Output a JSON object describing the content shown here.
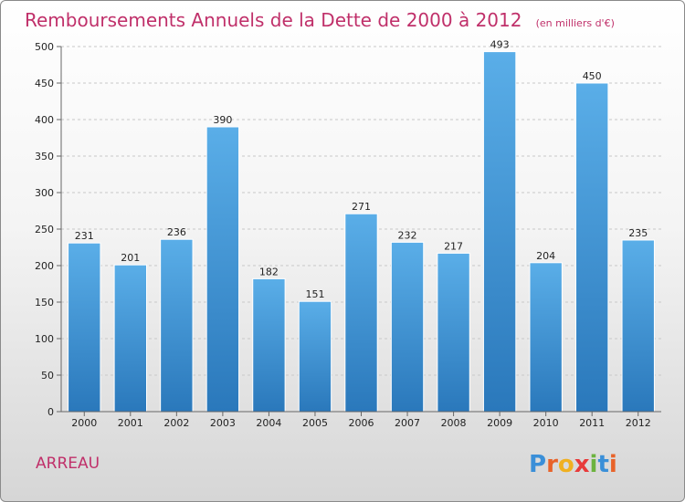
{
  "chart_data": {
    "type": "bar",
    "title": "Remboursements Annuels de la Dette de 2000 à 2012",
    "subtitle": "(en milliers d'€)",
    "categories": [
      "2000",
      "2001",
      "2002",
      "2003",
      "2004",
      "2005",
      "2006",
      "2007",
      "2008",
      "2009",
      "2010",
      "2011",
      "2012"
    ],
    "values": [
      231,
      201,
      236,
      390,
      182,
      151,
      271,
      232,
      217,
      493,
      204,
      450,
      235
    ],
    "ylim": [
      0,
      500
    ],
    "yticks": [
      0,
      50,
      100,
      150,
      200,
      250,
      300,
      350,
      400,
      450,
      500
    ],
    "grid": true,
    "bar_color_top": "#5aaee8",
    "bar_color_bottom": "#2a78bb"
  },
  "commune": "ARREAU",
  "logo": {
    "text": "Proxiti",
    "letters": [
      {
        "ch": "P",
        "color": "#3a8fd8"
      },
      {
        "ch": "r",
        "color": "#e8632a"
      },
      {
        "ch": "o",
        "color": "#f0b020"
      },
      {
        "ch": "x",
        "color": "#e83a3a"
      },
      {
        "ch": "i",
        "color": "#6cb33f"
      },
      {
        "ch": "t",
        "color": "#3a8fd8"
      },
      {
        "ch": "i",
        "color": "#e8632a"
      }
    ]
  }
}
